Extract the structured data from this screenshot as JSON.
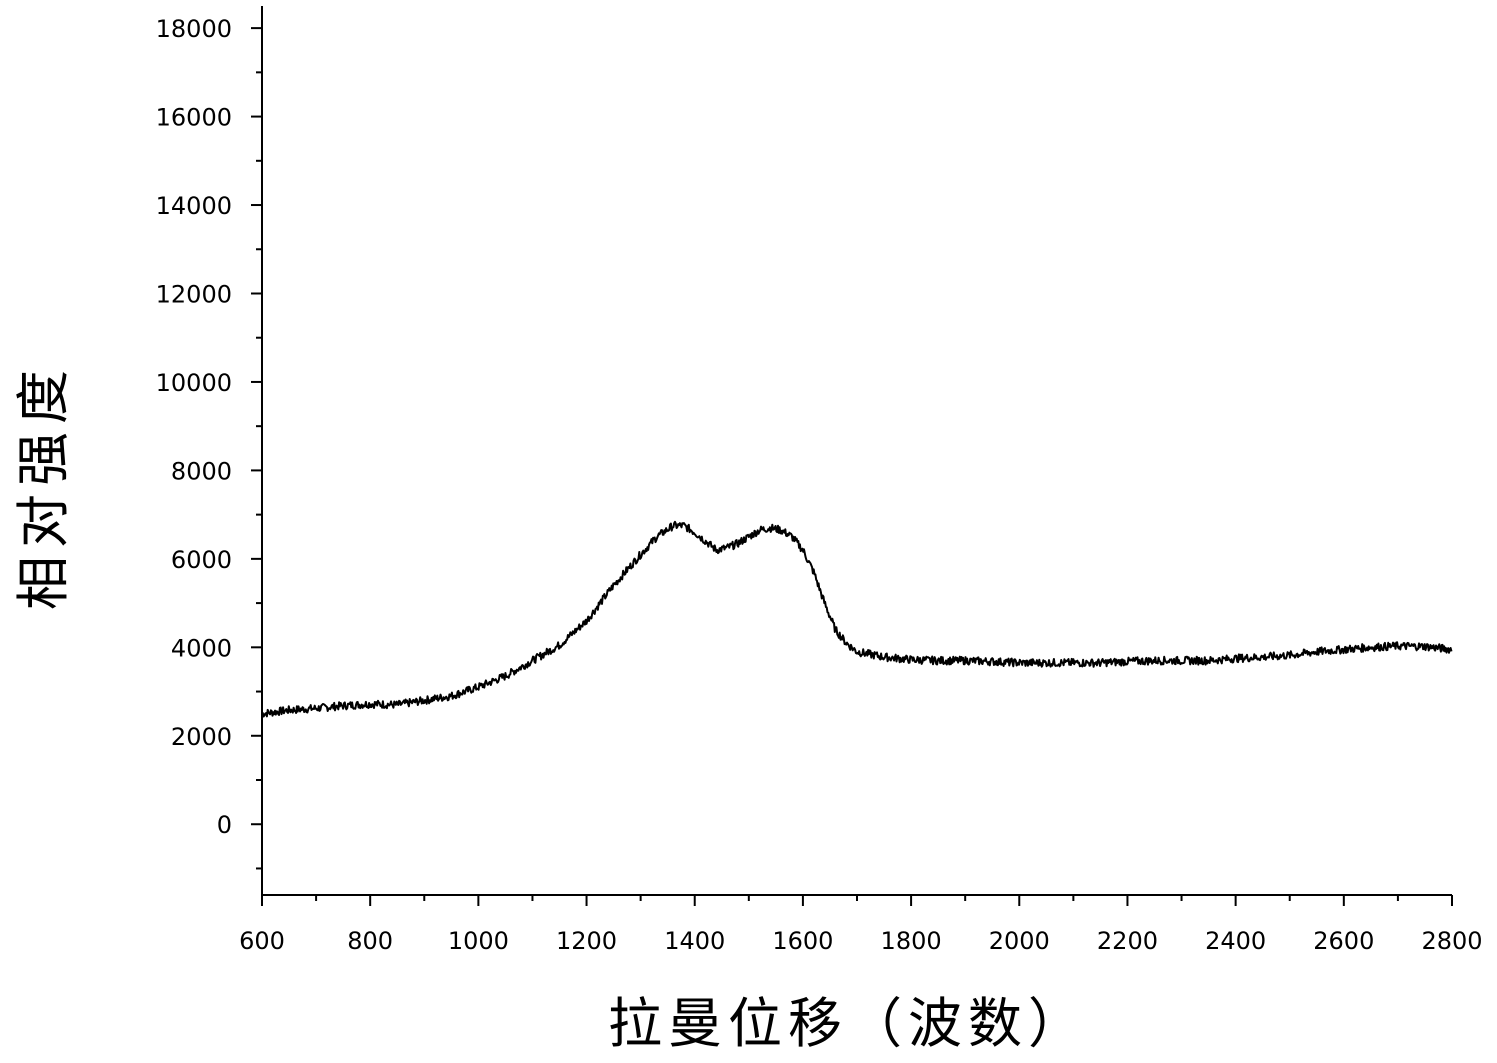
{
  "chart_data": {
    "type": "line",
    "title": "",
    "xlabel": "拉曼位移（波数）",
    "ylabel": "相对强度",
    "xlim": [
      600,
      2800
    ],
    "ylim": [
      -1600,
      18500
    ],
    "x_ticks": [
      600,
      800,
      1000,
      1200,
      1400,
      1600,
      1800,
      2000,
      2200,
      2400,
      2600,
      2800
    ],
    "x_tick_labels": [
      "600",
      "800",
      "1000",
      "1200",
      "1400",
      "1600",
      "1800",
      "2000",
      "2200",
      "2400",
      "2600",
      "2800"
    ],
    "x_minor_step": 100,
    "y_ticks": [
      0,
      2000,
      4000,
      6000,
      8000,
      10000,
      12000,
      14000,
      16000,
      18000
    ],
    "y_tick_labels": [
      "0",
      "2000",
      "4000",
      "6000",
      "8000",
      "10000",
      "12000",
      "14000",
      "16000",
      "18000"
    ],
    "y_minor_step": 1000,
    "grid": false,
    "legend": "none",
    "line_color": "#000000",
    "series": [
      {
        "x": [
          600,
          650,
          700,
          750,
          800,
          850,
          900,
          950,
          1000,
          1050,
          1100,
          1150,
          1200,
          1250,
          1300,
          1330,
          1360,
          1380,
          1400,
          1420,
          1440,
          1460,
          1480,
          1500,
          1520,
          1540,
          1560,
          1580,
          1600,
          1620,
          1640,
          1660,
          1680,
          1700,
          1750,
          1800,
          1850,
          1900,
          1950,
          2000,
          2050,
          2100,
          2150,
          2200,
          2250,
          2300,
          2350,
          2400,
          2450,
          2500,
          2550,
          2600,
          2650,
          2700,
          2750,
          2800
        ],
        "y": [
          2500,
          2580,
          2620,
          2680,
          2720,
          2700,
          2800,
          2900,
          3100,
          3350,
          3700,
          4050,
          4600,
          5400,
          6100,
          6500,
          6750,
          6750,
          6600,
          6400,
          6200,
          6250,
          6350,
          6500,
          6650,
          6700,
          6650,
          6500,
          6200,
          5700,
          5000,
          4400,
          4100,
          3900,
          3780,
          3720,
          3700,
          3700,
          3680,
          3650,
          3650,
          3650,
          3650,
          3680,
          3700,
          3700,
          3700,
          3750,
          3780,
          3820,
          3900,
          3950,
          4000,
          4030,
          4020,
          3950
        ]
      }
    ]
  }
}
